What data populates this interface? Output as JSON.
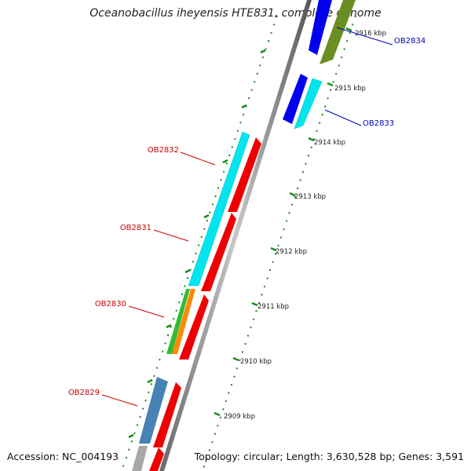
{
  "title": "Oceanobacillus iheyensis HTE831, complete genome",
  "accession": "Accession: NC_004193",
  "topology": "Topology: circular; Length: 3,630,528 bp; Genes: 3,591",
  "kbp_labels": [
    "2916 kbp",
    "2915 kbp",
    "2914 kbp",
    "2913 kbp",
    "2912 kbp",
    "2911 kbp",
    "2910 kbp",
    "2909 kbp"
  ],
  "gene_labels": [
    {
      "text": "OB2834",
      "color": "#0000bb"
    },
    {
      "text": "OB2833",
      "color": "#0000bb"
    },
    {
      "text": "OB2832",
      "color": "#cc0000"
    },
    {
      "text": "OB2831",
      "color": "#cc0000"
    },
    {
      "text": "OB2830",
      "color": "#cc0000"
    },
    {
      "text": "OB2829",
      "color": "#cc0000"
    }
  ]
}
